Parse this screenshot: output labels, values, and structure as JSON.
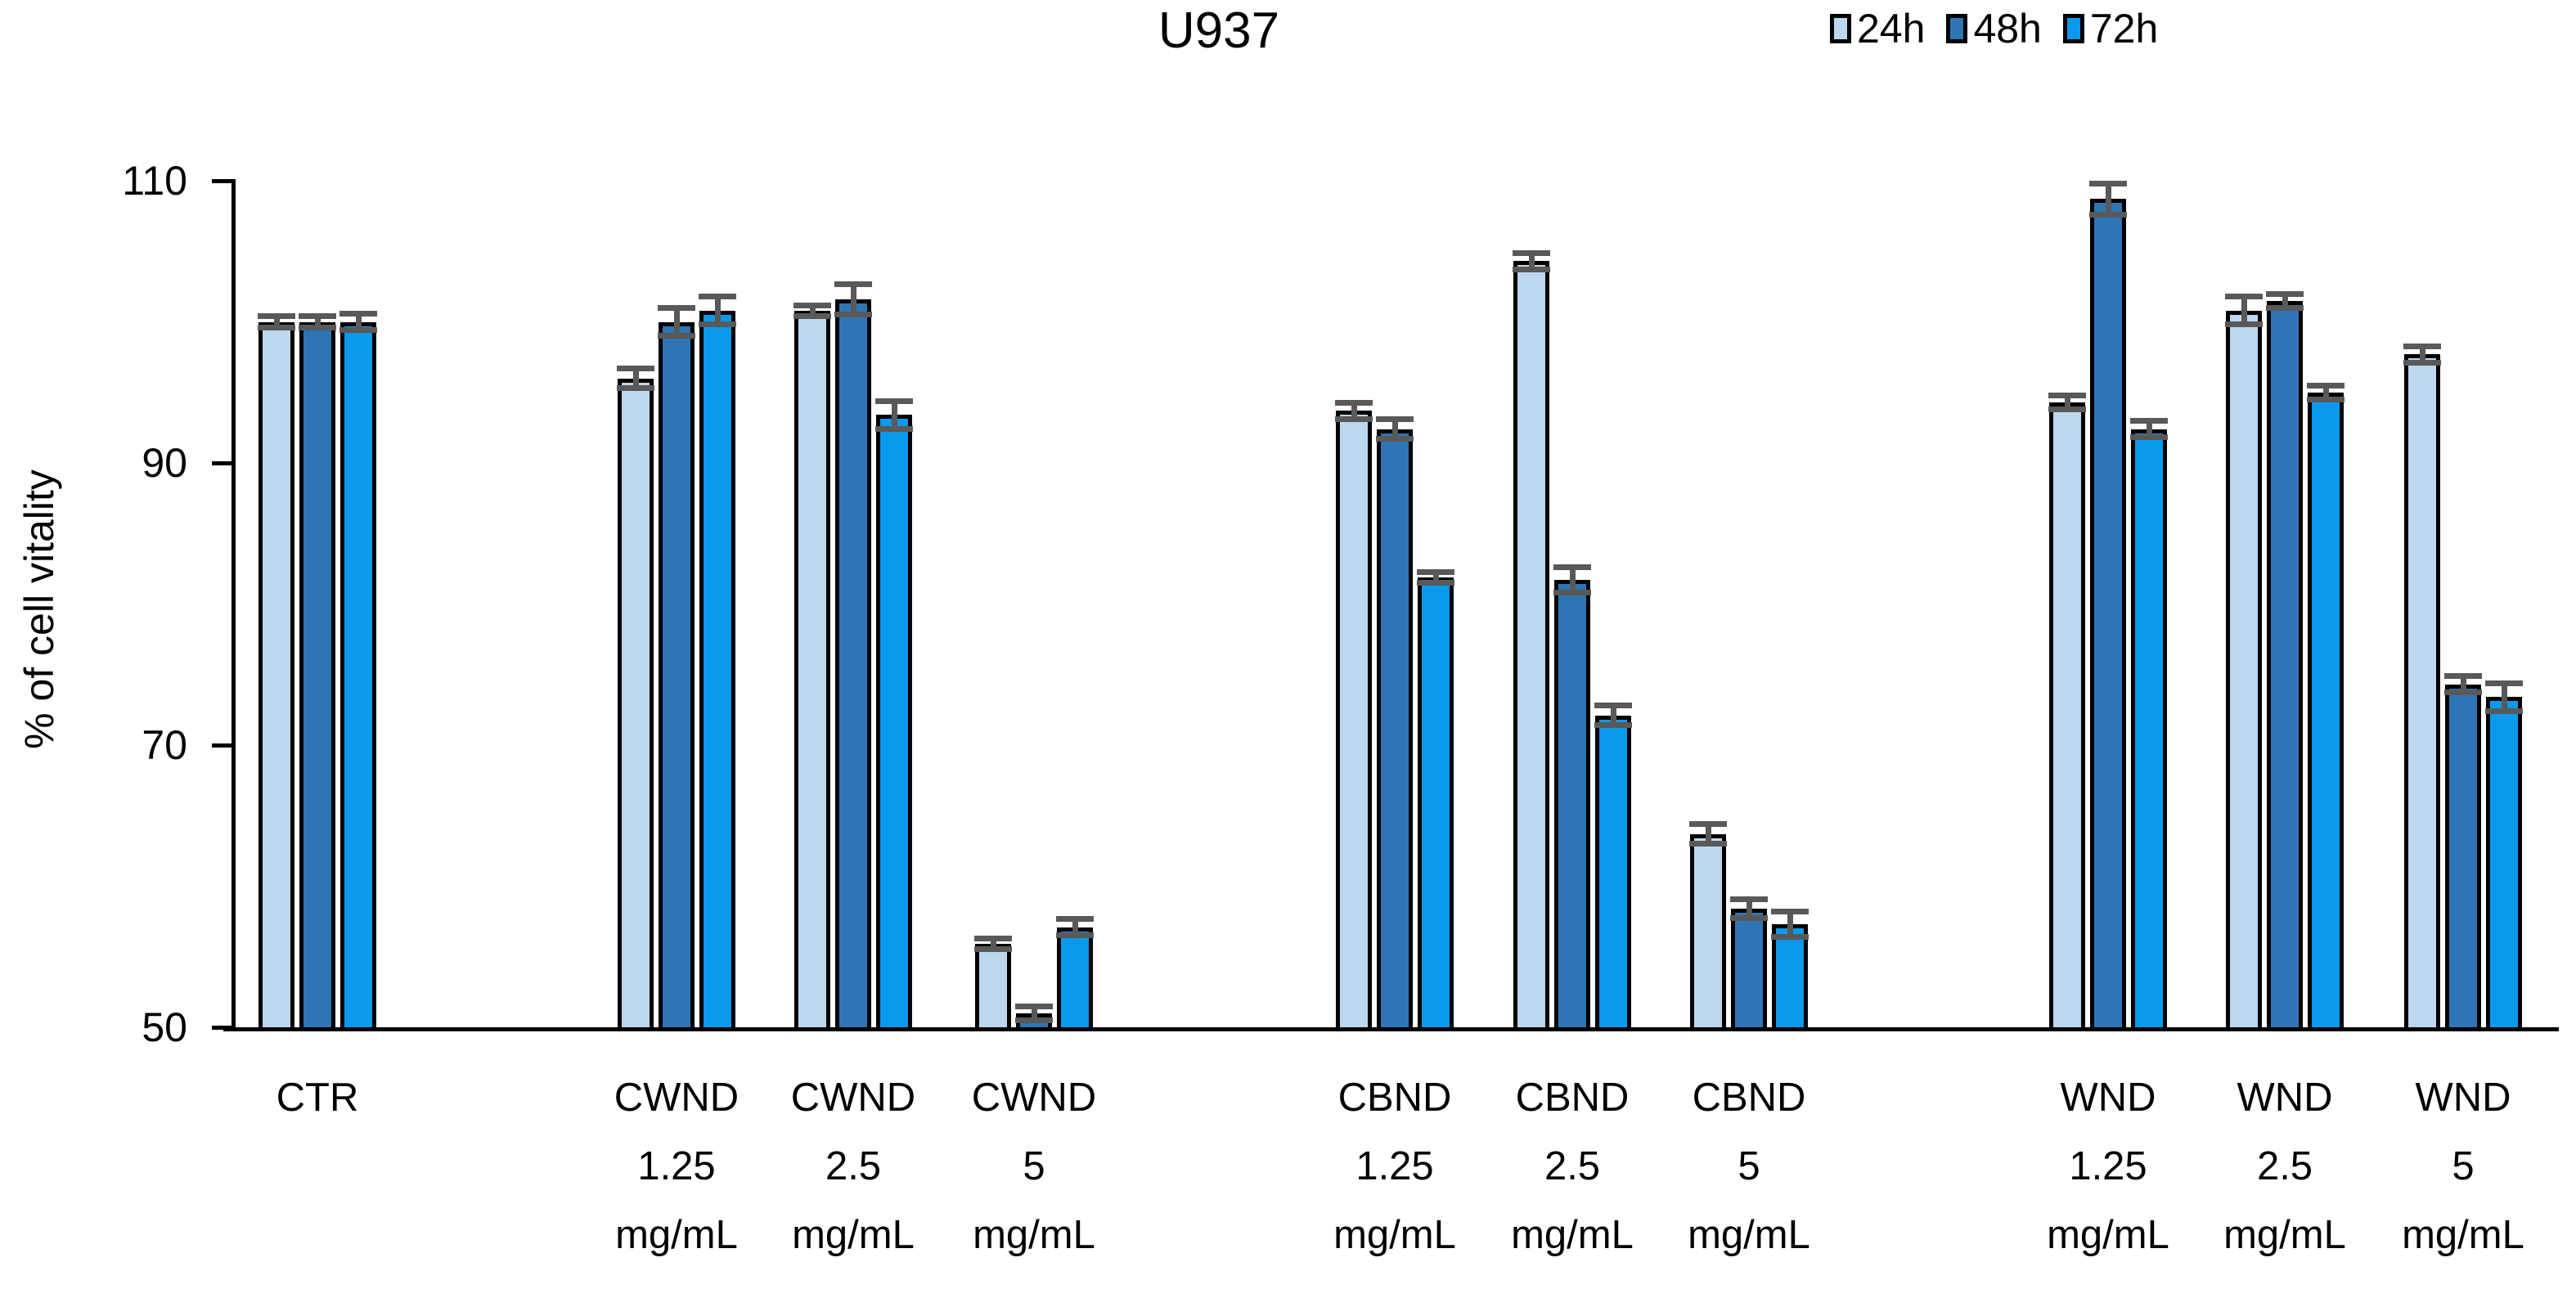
{
  "title": "U937",
  "y_axis": {
    "label": "% of cell vitality"
  },
  "legend": {
    "items": [
      {
        "label": "24h",
        "color": "#BDD7EE"
      },
      {
        "label": "48h",
        "color": "#2E75B6"
      },
      {
        "label": "72h",
        "color": "#0A99EC"
      }
    ]
  },
  "colors": {
    "bar_border": "#000000",
    "error_bar": "#595959",
    "axis": "#000000",
    "text": "#000000"
  },
  "chart_data": {
    "type": "bar",
    "title": "U937",
    "ylabel": "% of cell vitality",
    "ylim": [
      50,
      110
    ],
    "yticks": [
      110,
      90,
      70,
      50
    ],
    "grid": false,
    "legend_position": "top-right",
    "categories": [
      {
        "lines": [
          "CTR"
        ]
      },
      {
        "lines": [
          "CWND",
          "1.25",
          "mg/mL"
        ]
      },
      {
        "lines": [
          "CWND",
          "2.5",
          "mg/mL"
        ]
      },
      {
        "lines": [
          "CWND",
          "5",
          "mg/mL"
        ]
      },
      {
        "lines": [
          "CBND",
          "1.25",
          "mg/mL"
        ]
      },
      {
        "lines": [
          "CBND",
          "2.5",
          "mg/mL"
        ]
      },
      {
        "lines": [
          "CBND",
          "5",
          "mg/mL"
        ]
      },
      {
        "lines": [
          "WND",
          "1.25",
          "mg/mL"
        ]
      },
      {
        "lines": [
          "WND",
          "2.5",
          "mg/mL"
        ]
      },
      {
        "lines": [
          "WND",
          "5",
          "mg/mL"
        ]
      }
    ],
    "series": [
      {
        "name": "24h",
        "color": "#BDD7EE",
        "values": [
          100.0,
          96.0,
          100.8,
          55.9,
          93.7,
          104.3,
          63.7,
          94.3,
          100.8,
          97.7
        ],
        "errors": [
          0.3,
          0.6,
          0.3,
          0.3,
          0.5,
          0.5,
          0.6,
          0.4,
          0.9,
          0.5
        ]
      },
      {
        "name": "48h",
        "color": "#2E75B6",
        "values": [
          100.0,
          100.0,
          101.6,
          51.0,
          92.4,
          81.7,
          58.4,
          108.7,
          101.5,
          74.3
        ],
        "errors": [
          0.3,
          0.9,
          1.0,
          0.4,
          0.6,
          0.8,
          0.6,
          1.0,
          0.4,
          0.5
        ]
      },
      {
        "name": "72h",
        "color": "#0A99EC",
        "values": [
          100.0,
          100.8,
          93.4,
          57.1,
          81.9,
          72.1,
          57.3,
          92.4,
          95.0,
          73.4
        ],
        "errors": [
          0.5,
          0.9,
          0.9,
          0.5,
          0.3,
          0.6,
          0.8,
          0.5,
          0.4,
          0.9
        ]
      }
    ]
  }
}
